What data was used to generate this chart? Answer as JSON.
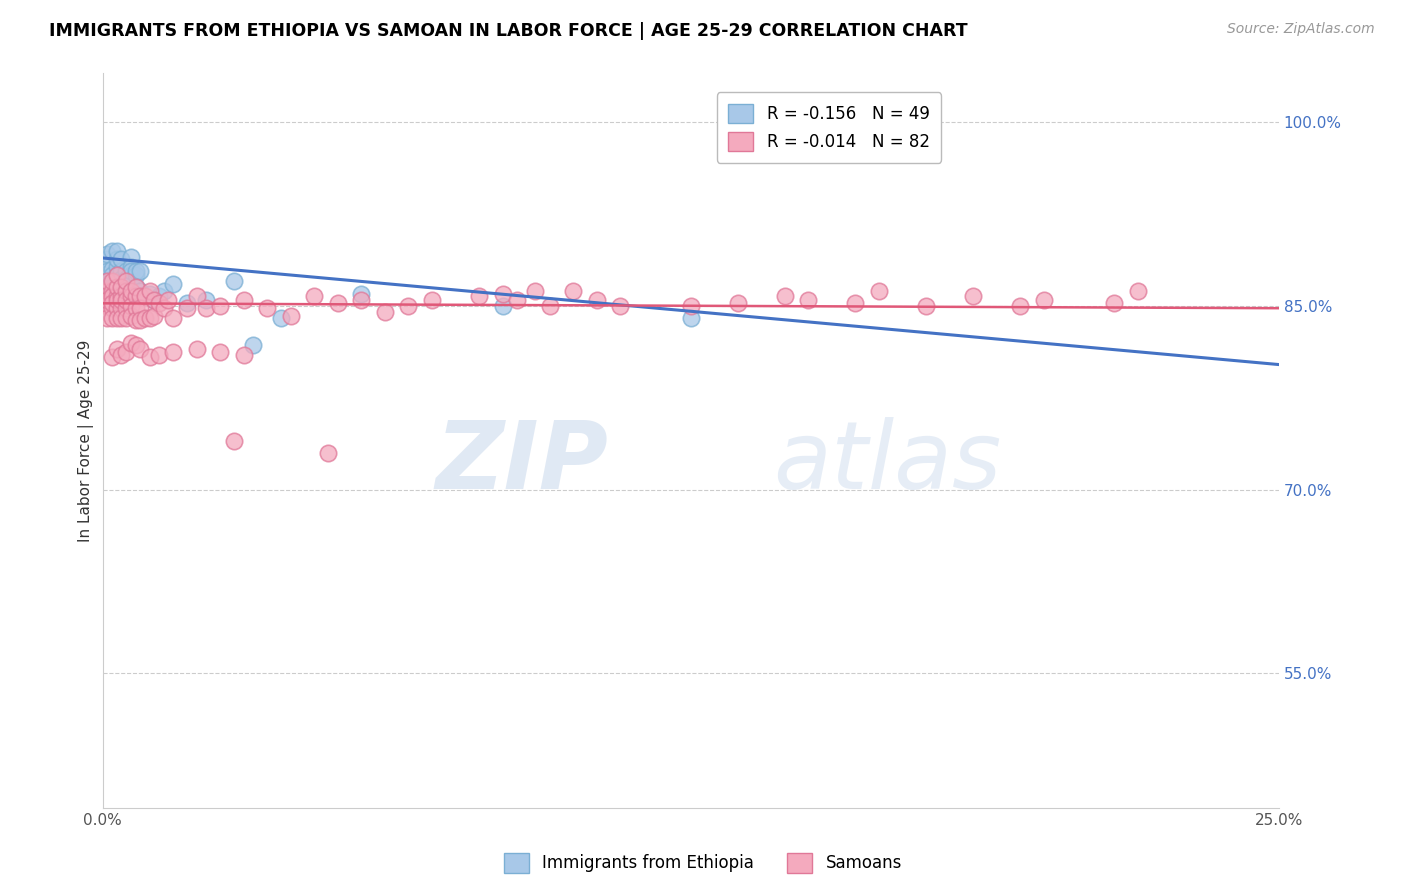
{
  "title": "IMMIGRANTS FROM ETHIOPIA VS SAMOAN IN LABOR FORCE | AGE 25-29 CORRELATION CHART",
  "source": "Source: ZipAtlas.com",
  "ylabel": "In Labor Force | Age 25-29",
  "right_yticks": [
    0.55,
    0.7,
    0.85,
    1.0
  ],
  "right_yticklabels": [
    "55.0%",
    "70.0%",
    "85.0%",
    "100.0%"
  ],
  "xlim": [
    0.0,
    0.25
  ],
  "ylim": [
    0.44,
    1.04
  ],
  "blue_color": "#A8C8E8",
  "blue_edge": "#7BAFD4",
  "pink_color": "#F4AABE",
  "pink_edge": "#E07898",
  "blue_line": "#4472C4",
  "pink_line": "#E05878",
  "watermark_zip": "ZIP",
  "watermark_atlas": "atlas",
  "ethiopia_x": [
    0.001,
    0.001,
    0.001,
    0.001,
    0.002,
    0.002,
    0.002,
    0.002,
    0.002,
    0.003,
    0.003,
    0.003,
    0.003,
    0.003,
    0.003,
    0.004,
    0.004,
    0.004,
    0.004,
    0.004,
    0.005,
    0.005,
    0.005,
    0.005,
    0.006,
    0.006,
    0.006,
    0.006,
    0.006,
    0.006,
    0.006,
    0.007,
    0.007,
    0.007,
    0.008,
    0.008,
    0.01,
    0.011,
    0.012,
    0.013,
    0.015,
    0.018,
    0.022,
    0.028,
    0.032,
    0.038,
    0.055,
    0.085,
    0.125
  ],
  "ethiopia_y": [
    0.888,
    0.878,
    0.892,
    0.87,
    0.88,
    0.872,
    0.895,
    0.875,
    0.865,
    0.882,
    0.875,
    0.869,
    0.888,
    0.86,
    0.895,
    0.878,
    0.87,
    0.862,
    0.888,
    0.872,
    0.878,
    0.87,
    0.855,
    0.872,
    0.89,
    0.882,
    0.875,
    0.87,
    0.862,
    0.855,
    0.878,
    0.875,
    0.865,
    0.878,
    0.878,
    0.862,
    0.86,
    0.855,
    0.858,
    0.862,
    0.868,
    0.852,
    0.855,
    0.87,
    0.818,
    0.84,
    0.86,
    0.85,
    0.84
  ],
  "samoan_x": [
    0.001,
    0.001,
    0.001,
    0.001,
    0.001,
    0.002,
    0.002,
    0.002,
    0.002,
    0.002,
    0.002,
    0.003,
    0.003,
    0.003,
    0.003,
    0.003,
    0.003,
    0.004,
    0.004,
    0.004,
    0.004,
    0.004,
    0.005,
    0.005,
    0.005,
    0.005,
    0.005,
    0.006,
    0.006,
    0.006,
    0.006,
    0.007,
    0.007,
    0.007,
    0.007,
    0.008,
    0.008,
    0.008,
    0.009,
    0.009,
    0.01,
    0.01,
    0.011,
    0.011,
    0.012,
    0.013,
    0.014,
    0.015,
    0.018,
    0.02,
    0.022,
    0.025,
    0.03,
    0.035,
    0.04,
    0.045,
    0.05,
    0.055,
    0.06,
    0.065,
    0.07,
    0.08,
    0.085,
    0.088,
    0.092,
    0.095,
    0.1,
    0.105,
    0.11,
    0.125,
    0.135,
    0.145,
    0.15,
    0.16,
    0.165,
    0.175,
    0.185,
    0.195,
    0.2,
    0.215,
    0.22,
    0.028,
    0.048
  ],
  "samoan_y": [
    0.862,
    0.85,
    0.84,
    0.855,
    0.87,
    0.862,
    0.848,
    0.858,
    0.87,
    0.84,
    0.852,
    0.858,
    0.848,
    0.865,
    0.875,
    0.84,
    0.855,
    0.858,
    0.848,
    0.865,
    0.84,
    0.855,
    0.862,
    0.848,
    0.855,
    0.87,
    0.84,
    0.858,
    0.85,
    0.862,
    0.842,
    0.858,
    0.848,
    0.865,
    0.838,
    0.858,
    0.848,
    0.838,
    0.858,
    0.84,
    0.862,
    0.84,
    0.855,
    0.842,
    0.852,
    0.848,
    0.855,
    0.84,
    0.848,
    0.858,
    0.848,
    0.85,
    0.855,
    0.848,
    0.842,
    0.858,
    0.852,
    0.855,
    0.845,
    0.85,
    0.855,
    0.858,
    0.86,
    0.855,
    0.862,
    0.85,
    0.862,
    0.855,
    0.85,
    0.85,
    0.852,
    0.858,
    0.855,
    0.852,
    0.862,
    0.85,
    0.858,
    0.85,
    0.855,
    0.852,
    0.862,
    0.74,
    0.73
  ],
  "samoan_extra_x": [
    0.002,
    0.003,
    0.004,
    0.005,
    0.006,
    0.007,
    0.008,
    0.01,
    0.012,
    0.015,
    0.02,
    0.025,
    0.03
  ],
  "samoan_extra_y": [
    0.808,
    0.815,
    0.81,
    0.812,
    0.82,
    0.818,
    0.815,
    0.808,
    0.81,
    0.812,
    0.815,
    0.812,
    0.81
  ],
  "eth_trendline": [
    0.889,
    0.802
  ],
  "sam_trendline": [
    0.852,
    0.848
  ]
}
